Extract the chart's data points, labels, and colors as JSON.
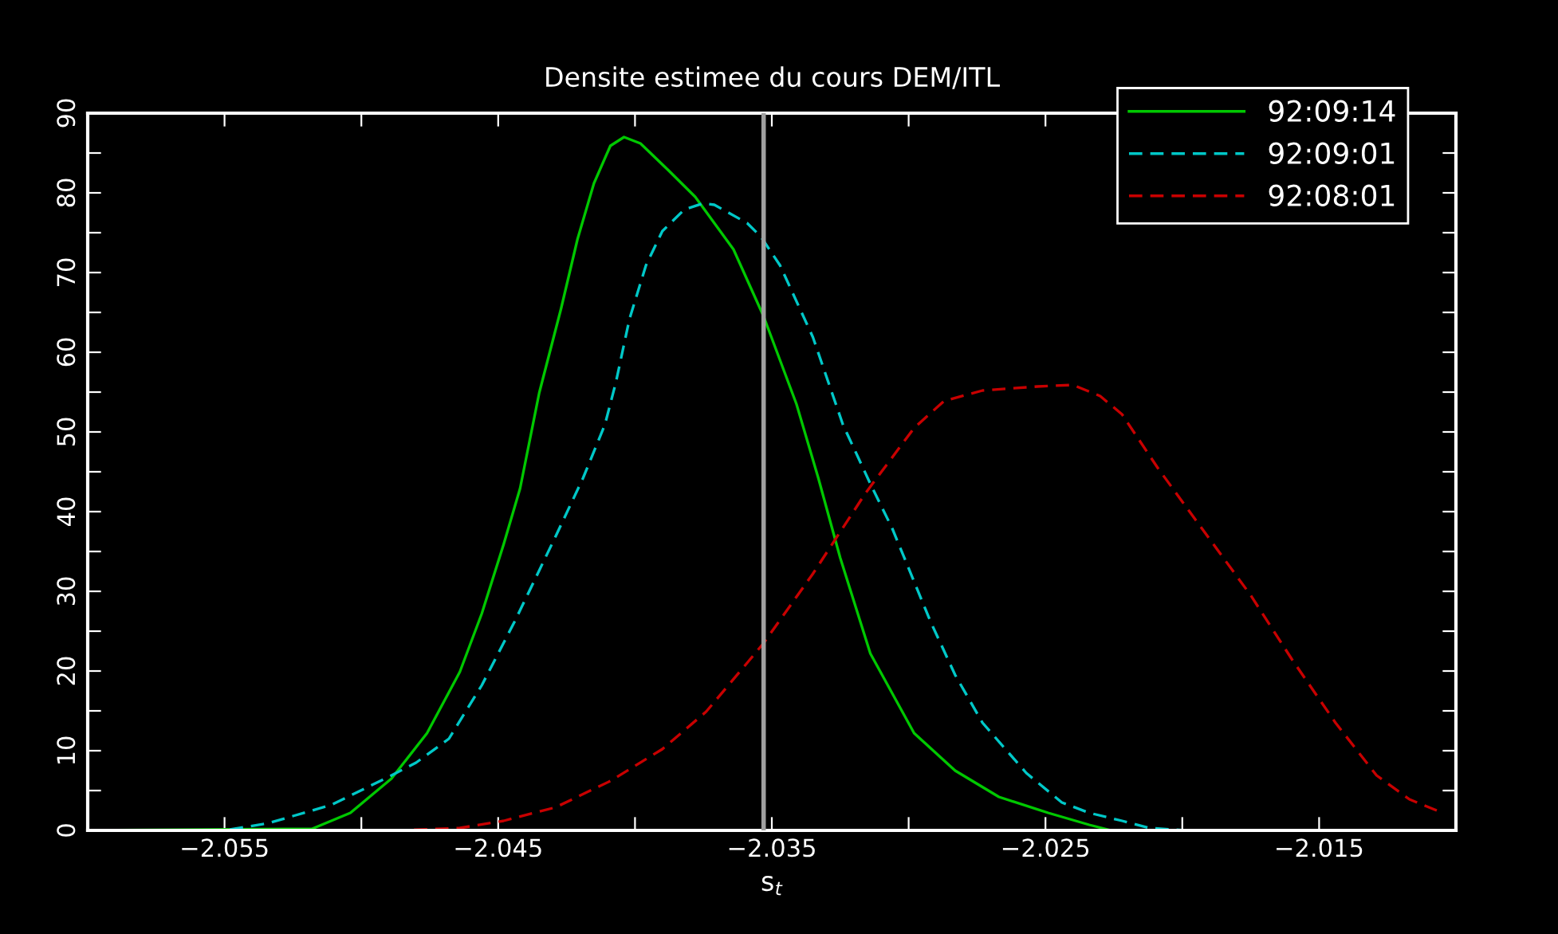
{
  "chart_data": {
    "type": "line",
    "title": "Densite estimee du cours DEM/ITL",
    "xlabel": "s$_{t}$",
    "xlim": [
      -2.06,
      -2.01
    ],
    "ylim": [
      0,
      90
    ],
    "xticks": [
      -2.055,
      {
        "value": -2.05,
        "label": null
      },
      -2.045,
      {
        "value": -2.04,
        "label": null
      },
      -2.035,
      {
        "value": -2.03,
        "label": null
      },
      -2.025,
      {
        "value": -2.02,
        "label": null
      },
      -2.015
    ],
    "yticks": [
      0,
      {
        "value": 5,
        "label": null
      },
      10,
      {
        "value": 15,
        "label": null
      },
      20,
      {
        "value": 25,
        "label": null
      },
      30,
      {
        "value": 35,
        "label": null
      },
      40,
      {
        "value": 45,
        "label": null
      },
      50,
      {
        "value": 55,
        "label": null
      },
      60,
      {
        "value": 65,
        "label": null
      },
      70,
      {
        "value": 75,
        "label": null
      },
      80,
      {
        "value": 85,
        "label": null
      },
      90
    ],
    "grid": false,
    "legend": "top right",
    "ref_lines": [
      {
        "axis": "x",
        "value": -2.0353,
        "color": "#a0a0a0",
        "line_style": "solid"
      }
    ],
    "series": [
      {
        "name": "92:09:14",
        "color": "#00c800",
        "line_style": "solid",
        "x": [
          -2.06,
          -2.0518,
          -2.0504,
          -2.0489,
          -2.0476,
          -2.0464,
          -2.0456,
          -2.0448,
          -2.0442,
          -2.0435,
          -2.0427,
          -2.0421,
          -2.0415,
          -2.0409,
          -2.0404,
          -2.0398,
          -2.0388,
          -2.0378,
          -2.0364,
          -2.0353,
          -2.0341,
          -2.0333,
          -2.0325,
          -2.0314,
          -2.0298,
          -2.0283,
          -2.0267,
          -2.0249,
          -2.0234,
          -2.0226,
          -2.01
        ],
        "values": [
          0,
          0.2,
          2.2,
          6.5,
          12.2,
          19.9,
          27.2,
          35.9,
          42.9,
          54.9,
          65.5,
          74.2,
          81.2,
          85.9,
          87.0,
          86.2,
          82.9,
          79.5,
          72.9,
          64.5,
          53.5,
          44.2,
          34.2,
          22.2,
          12.2,
          7.5,
          4.2,
          2.2,
          0.7,
          0,
          0
        ]
      },
      {
        "name": "92:09:01",
        "color": "#00c8c8",
        "line_style": "dashed",
        "x": [
          -2.06,
          -2.055,
          -2.0534,
          -2.0511,
          -2.0489,
          -2.048,
          -2.0468,
          -2.0456,
          -2.0444,
          -2.0429,
          -2.0419,
          -2.0411,
          -2.0407,
          -2.0402,
          -2.0396,
          -2.039,
          -2.0382,
          -2.0375,
          -2.0371,
          -2.0359,
          -2.0354,
          -2.0347,
          -2.0335,
          -2.0324,
          -2.0314,
          -2.0306,
          -2.0292,
          -2.0283,
          -2.0273,
          -2.0257,
          -2.0244,
          -2.0234,
          -2.0222,
          -2.0212,
          -2.0199,
          -2.0104
        ],
        "values": [
          0,
          0,
          0.9,
          3.2,
          6.9,
          8.5,
          11.5,
          18.2,
          26.2,
          36.9,
          44.2,
          50.9,
          56.2,
          64.2,
          70.9,
          75.2,
          77.9,
          78.7,
          78.5,
          76.2,
          74.5,
          70.9,
          61.9,
          50.9,
          43.5,
          37.9,
          26.2,
          19.5,
          13.5,
          7.2,
          3.5,
          2.2,
          1.2,
          0.3,
          0,
          0
        ]
      },
      {
        "name": "92:08:01",
        "color": "#c80000",
        "line_style": "dashed",
        "x": [
          -2.06,
          -2.0487,
          -2.0464,
          -2.0448,
          -2.0429,
          -2.0409,
          -2.039,
          -2.0374,
          -2.0361,
          -2.0353,
          -2.0335,
          -2.0316,
          -2.0298,
          -2.0287,
          -2.0273,
          -2.0253,
          -2.024,
          -2.023,
          -2.0222,
          -2.0209,
          -2.0195,
          -2.0175,
          -2.016,
          -2.0144,
          -2.0129,
          -2.0117,
          -2.0107
        ],
        "values": [
          0,
          0,
          0.3,
          1.2,
          2.9,
          6.2,
          10.2,
          14.9,
          20.2,
          23.5,
          32.2,
          42.2,
          50.5,
          53.9,
          55.2,
          55.7,
          55.9,
          54.5,
          52.2,
          45.5,
          38.9,
          29.5,
          21.5,
          13.5,
          6.9,
          3.9,
          2.5
        ]
      }
    ]
  }
}
